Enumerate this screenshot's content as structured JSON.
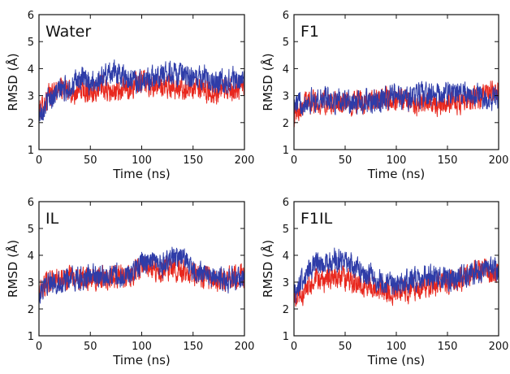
{
  "chart_data": [
    {
      "type": "line",
      "panel_label": "Water",
      "xlabel": "Time (ns)",
      "ylabel": "RMSD (Å)",
      "xlim": [
        0,
        200
      ],
      "ylim": [
        1,
        6
      ],
      "xticks": [
        0,
        50,
        100,
        150,
        200
      ],
      "yticks": [
        1,
        2,
        3,
        4,
        5,
        6
      ],
      "series": [
        {
          "color": "#e8281e",
          "x": [
            0,
            10,
            20,
            30,
            40,
            50,
            60,
            70,
            80,
            90,
            100,
            110,
            120,
            130,
            140,
            150,
            160,
            170,
            180,
            190,
            200
          ],
          "values": [
            2.4,
            3.0,
            3.3,
            3.1,
            3.2,
            3.2,
            3.3,
            3.1,
            3.2,
            3.3,
            3.5,
            3.4,
            3.3,
            3.4,
            3.2,
            3.3,
            3.2,
            3.1,
            3.2,
            3.3,
            3.3
          ]
        },
        {
          "color": "#2e3ca8",
          "x": [
            0,
            10,
            20,
            30,
            40,
            50,
            60,
            70,
            80,
            90,
            100,
            110,
            120,
            130,
            140,
            150,
            160,
            170,
            180,
            190,
            200
          ],
          "values": [
            2.3,
            2.9,
            3.2,
            3.3,
            3.6,
            3.5,
            3.6,
            3.9,
            3.8,
            3.6,
            3.5,
            3.7,
            3.8,
            3.9,
            3.7,
            3.6,
            3.7,
            3.6,
            3.5,
            3.6,
            3.5
          ]
        }
      ]
    },
    {
      "type": "line",
      "panel_label": "F1",
      "xlabel": "Time (ns)",
      "ylabel": "RMSD (Å)",
      "xlim": [
        0,
        200
      ],
      "ylim": [
        1,
        6
      ],
      "xticks": [
        0,
        50,
        100,
        150,
        200
      ],
      "yticks": [
        1,
        2,
        3,
        4,
        5,
        6
      ],
      "series": [
        {
          "color": "#e8281e",
          "x": [
            0,
            10,
            20,
            30,
            40,
            50,
            60,
            70,
            80,
            90,
            100,
            110,
            120,
            130,
            140,
            150,
            160,
            170,
            180,
            190,
            200
          ],
          "values": [
            2.3,
            2.8,
            2.8,
            2.7,
            2.7,
            2.7,
            2.8,
            2.7,
            2.8,
            2.9,
            2.8,
            2.8,
            2.7,
            2.7,
            2.7,
            2.8,
            2.8,
            2.8,
            2.9,
            3.1,
            3.2
          ]
        },
        {
          "color": "#2e3ca8",
          "x": [
            0,
            10,
            20,
            30,
            40,
            50,
            60,
            70,
            80,
            90,
            100,
            110,
            120,
            130,
            140,
            150,
            160,
            170,
            180,
            190,
            200
          ],
          "values": [
            2.6,
            2.8,
            2.8,
            2.9,
            2.8,
            2.8,
            2.7,
            2.8,
            2.7,
            2.9,
            3.0,
            2.9,
            3.0,
            3.1,
            3.0,
            3.1,
            3.1,
            3.0,
            3.0,
            2.9,
            2.9
          ]
        }
      ]
    },
    {
      "type": "line",
      "panel_label": "IL",
      "xlabel": "Time (ns)",
      "ylabel": "RMSD (Å)",
      "xlim": [
        0,
        200
      ],
      "ylim": [
        1,
        6
      ],
      "xticks": [
        0,
        50,
        100,
        150,
        200
      ],
      "yticks": [
        1,
        2,
        3,
        4,
        5,
        6
      ],
      "series": [
        {
          "color": "#e8281e",
          "x": [
            0,
            10,
            20,
            30,
            40,
            50,
            60,
            70,
            80,
            90,
            100,
            110,
            120,
            130,
            140,
            150,
            160,
            170,
            180,
            190,
            200
          ],
          "values": [
            2.7,
            3.0,
            3.1,
            3.1,
            3.2,
            3.2,
            3.1,
            3.2,
            3.2,
            3.3,
            3.6,
            3.5,
            3.4,
            3.6,
            3.4,
            3.3,
            3.2,
            3.1,
            3.1,
            3.2,
            3.2
          ]
        },
        {
          "color": "#2e3ca8",
          "x": [
            0,
            10,
            20,
            30,
            40,
            50,
            60,
            70,
            80,
            90,
            100,
            110,
            120,
            130,
            140,
            150,
            160,
            170,
            180,
            190,
            200
          ],
          "values": [
            2.6,
            2.9,
            3.0,
            3.1,
            3.1,
            3.2,
            3.2,
            3.3,
            3.2,
            3.3,
            3.8,
            3.7,
            3.6,
            4.0,
            3.9,
            3.5,
            3.3,
            3.2,
            3.1,
            3.1,
            3.2
          ]
        }
      ]
    },
    {
      "type": "line",
      "panel_label": "F1IL",
      "xlabel": "Time (ns)",
      "ylabel": "RMSD (Å)",
      "xlim": [
        0,
        200
      ],
      "ylim": [
        1,
        6
      ],
      "xticks": [
        0,
        50,
        100,
        150,
        200
      ],
      "yticks": [
        1,
        2,
        3,
        4,
        5,
        6
      ],
      "series": [
        {
          "color": "#e8281e",
          "x": [
            0,
            10,
            20,
            30,
            40,
            50,
            60,
            70,
            80,
            90,
            100,
            110,
            120,
            130,
            140,
            150,
            160,
            170,
            180,
            190,
            200
          ],
          "values": [
            2.4,
            2.6,
            3.0,
            3.1,
            3.2,
            3.1,
            3.0,
            2.9,
            2.8,
            2.7,
            2.6,
            2.7,
            2.8,
            2.9,
            2.9,
            3.0,
            3.1,
            3.2,
            3.5,
            3.4,
            3.2
          ]
        },
        {
          "color": "#2e3ca8",
          "x": [
            0,
            10,
            20,
            30,
            40,
            50,
            60,
            70,
            80,
            90,
            100,
            110,
            120,
            130,
            140,
            150,
            160,
            170,
            180,
            190,
            200
          ],
          "values": [
            2.6,
            3.2,
            3.6,
            3.7,
            3.8,
            3.9,
            3.6,
            3.3,
            3.1,
            3.0,
            2.9,
            3.0,
            3.1,
            3.2,
            3.2,
            3.1,
            3.2,
            3.3,
            3.4,
            3.5,
            3.4
          ]
        }
      ]
    }
  ]
}
